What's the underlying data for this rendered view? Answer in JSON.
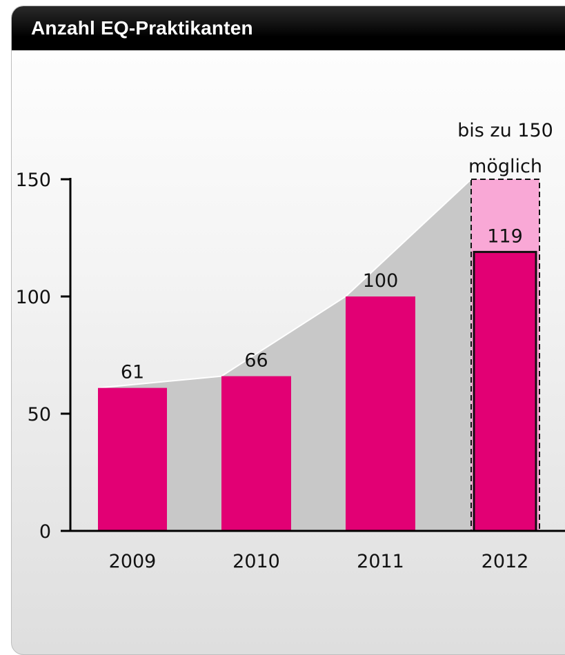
{
  "header": {
    "title": "Anzahl EQ-Praktikanten"
  },
  "colors": {
    "bar": "#e20074",
    "possible": "#f9a8d6",
    "area": "#c8c8c8"
  },
  "chart_data": {
    "type": "bar",
    "title": "Anzahl EQ-Praktikanten",
    "categories": [
      "2009",
      "2010",
      "2011",
      "2012"
    ],
    "values": [
      61,
      66,
      100,
      119
    ],
    "data_labels": [
      "61",
      "66",
      "100",
      "119"
    ],
    "possible": {
      "category": "2012",
      "value": 150,
      "label_line1": "bis zu 150",
      "label_line2": "möglich"
    },
    "ylim": [
      0,
      150
    ],
    "yticks": [
      0,
      50,
      100,
      150
    ],
    "ytick_labels": [
      "0",
      "50",
      "100",
      "150"
    ],
    "grid": false,
    "legend": "none"
  }
}
